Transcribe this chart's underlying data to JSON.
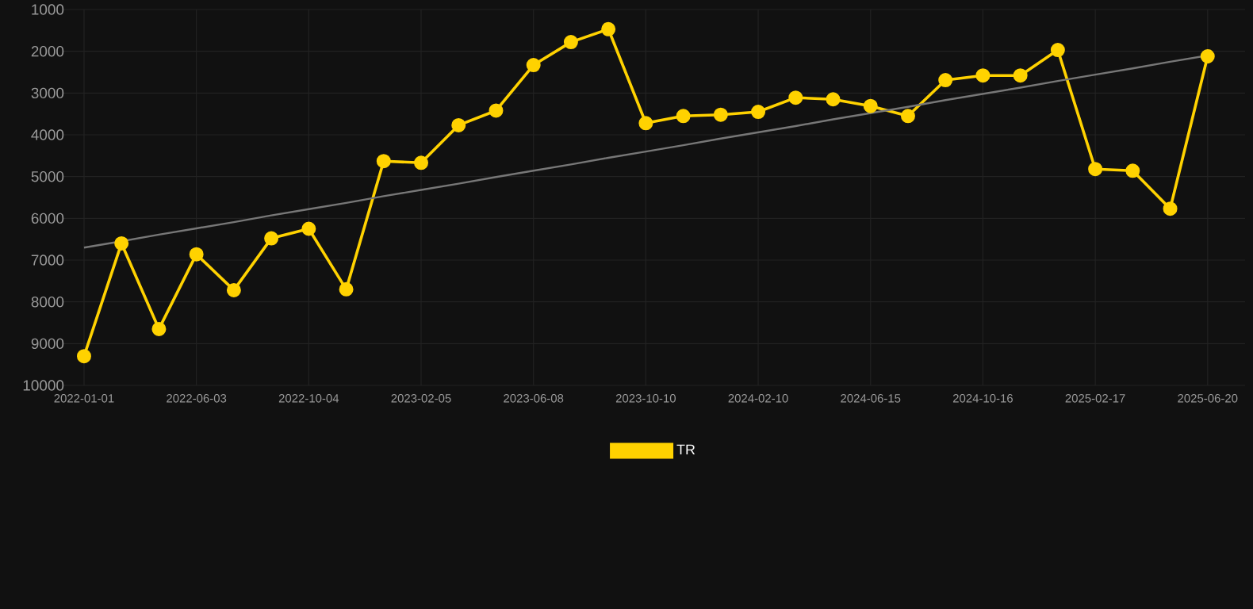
{
  "chart_data": {
    "type": "line",
    "categories": [
      "2022-01-01",
      null,
      null,
      "2022-06-03",
      null,
      null,
      "2022-10-04",
      null,
      null,
      "2023-02-05",
      null,
      null,
      "2023-06-08",
      null,
      null,
      "2023-10-10",
      null,
      null,
      "2024-02-10",
      null,
      null,
      "2024-06-15",
      null,
      null,
      "2024-10-16",
      null,
      null,
      "2025-02-17",
      null,
      null,
      "2025-06-20"
    ],
    "series": [
      {
        "name": "TR",
        "color": "#ffd200",
        "marker": "circle",
        "values": [
          9300,
          6600,
          8650,
          6860,
          7720,
          6480,
          6250,
          7700,
          4630,
          4670,
          3770,
          3420,
          2330,
          1780,
          1470,
          3720,
          3550,
          3520,
          3450,
          3110,
          3150,
          3310,
          3550,
          2690,
          2580,
          2580,
          1970,
          4820,
          4860,
          5770,
          2120
        ]
      },
      {
        "type": "line",
        "color": "#777777",
        "marker": "none",
        "values": [
          6700,
          6550,
          6390,
          6240,
          6090,
          5930,
          5780,
          5630,
          5470,
          5320,
          5170,
          5010,
          4860,
          4710,
          4550,
          4400,
          4250,
          4090,
          3940,
          3790,
          3630,
          3480,
          3330,
          3170,
          3020,
          2870,
          2710,
          2560,
          2410,
          2250,
          2100
        ]
      }
    ],
    "ylim": [
      10000,
      1000
    ],
    "yticks": [
      1000,
      2000,
      3000,
      4000,
      5000,
      6000,
      7000,
      8000,
      9000,
      10000
    ],
    "grid": true,
    "legend": "bottom"
  }
}
